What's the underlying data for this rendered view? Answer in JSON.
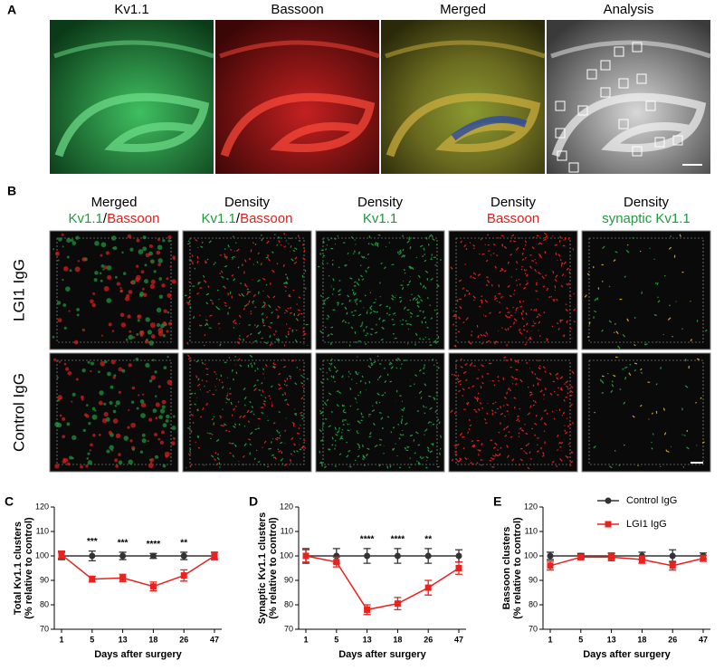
{
  "panel_a": {
    "label": "A",
    "titles": [
      "Kv1.1",
      "Bassoon",
      "Merged",
      "Analysis"
    ]
  },
  "panel_b": {
    "label": "B",
    "columns": [
      {
        "title": "Merged",
        "parts": [
          {
            "text": "Kv1.1",
            "color": "#1f9a3c"
          },
          {
            "text": "/",
            "color": "#000000"
          },
          {
            "text": "Bassoon",
            "color": "#e0201c"
          }
        ]
      },
      {
        "title": "Density",
        "parts": [
          {
            "text": "Kv1.1",
            "color": "#1f9a3c"
          },
          {
            "text": "/",
            "color": "#000000"
          },
          {
            "text": "Bassoon",
            "color": "#e0201c"
          }
        ]
      },
      {
        "title": "Density",
        "parts": [
          {
            "text": "Kv1.1",
            "color": "#1f9a3c"
          }
        ]
      },
      {
        "title": "Density",
        "parts": [
          {
            "text": "Bassoon",
            "color": "#e0201c"
          }
        ]
      },
      {
        "title": "Density",
        "parts": [
          {
            "text": "synaptic Kv1.1",
            "color": "#1f9a3c"
          }
        ]
      }
    ],
    "rows": [
      "LGI1 IgG",
      "Control IgG"
    ]
  },
  "chart_data": [
    {
      "type": "line",
      "panel_label": "C",
      "ylabel": [
        "Total Kv1.1 clusters",
        "(% relative to control)"
      ],
      "xlabel": "Days after surgery",
      "categories": [
        "1",
        "5",
        "13",
        "18",
        "26",
        "47"
      ],
      "ylim": [
        70,
        120
      ],
      "yticks": [
        70,
        80,
        90,
        100,
        110,
        120
      ],
      "significance": [
        null,
        "***",
        "***",
        "****",
        "**",
        null
      ],
      "legend": false,
      "series": [
        {
          "color": "#333333",
          "marker": "circle",
          "values": [
            100,
            100,
            100,
            100,
            100,
            100
          ],
          "errors": [
            1.5,
            2,
            1.5,
            1,
            1.5,
            1.5
          ]
        },
        {
          "color": "#e8221e",
          "marker": "square",
          "values": [
            100.5,
            90.5,
            91,
            87.5,
            92,
            100
          ],
          "errors": [
            1.5,
            1.2,
            1.5,
            1.8,
            2.3,
            1.5
          ]
        }
      ]
    },
    {
      "type": "line",
      "panel_label": "D",
      "ylabel": [
        "Synaptic Kv1.1 clusters",
        "(% relative to control)"
      ],
      "xlabel": "Days after surgery",
      "categories": [
        "1",
        "5",
        "13",
        "18",
        "26",
        "47"
      ],
      "ylim": [
        70,
        120
      ],
      "yticks": [
        70,
        80,
        90,
        100,
        110,
        120
      ],
      "significance": [
        null,
        null,
        "****",
        "****",
        "**",
        null
      ],
      "legend": false,
      "series": [
        {
          "color": "#333333",
          "marker": "circle",
          "values": [
            100,
            100,
            100,
            100,
            100,
            100
          ],
          "errors": [
            3,
            3,
            3,
            3,
            3,
            2.5
          ]
        },
        {
          "color": "#e8221e",
          "marker": "square",
          "values": [
            100,
            97.5,
            78,
            80.5,
            87,
            95
          ],
          "errors": [
            2.5,
            2,
            2,
            2.5,
            3,
            2.5
          ]
        }
      ]
    },
    {
      "type": "line",
      "panel_label": "E",
      "ylabel": [
        "Bassoon clusters",
        "(% relative to control)"
      ],
      "xlabel": "Days after surgery",
      "categories": [
        "1",
        "5",
        "13",
        "18",
        "26",
        "47"
      ],
      "ylim": [
        70,
        120
      ],
      "yticks": [
        70,
        80,
        90,
        100,
        110,
        120
      ],
      "legend": true,
      "series": [
        {
          "name": "Control IgG",
          "color": "#333333",
          "marker": "circle",
          "values": [
            100,
            100,
            100,
            100,
            100,
            100
          ],
          "errors": [
            1.5,
            1,
            1.2,
            1.5,
            2.5,
            1.2
          ]
        },
        {
          "name": "LGI1 IgG",
          "color": "#e8221e",
          "marker": "square",
          "values": [
            96,
            99.5,
            99.5,
            98.5,
            96,
            99
          ],
          "errors": [
            1.8,
            1,
            1.5,
            1.5,
            1.8,
            1.2
          ]
        }
      ]
    }
  ]
}
